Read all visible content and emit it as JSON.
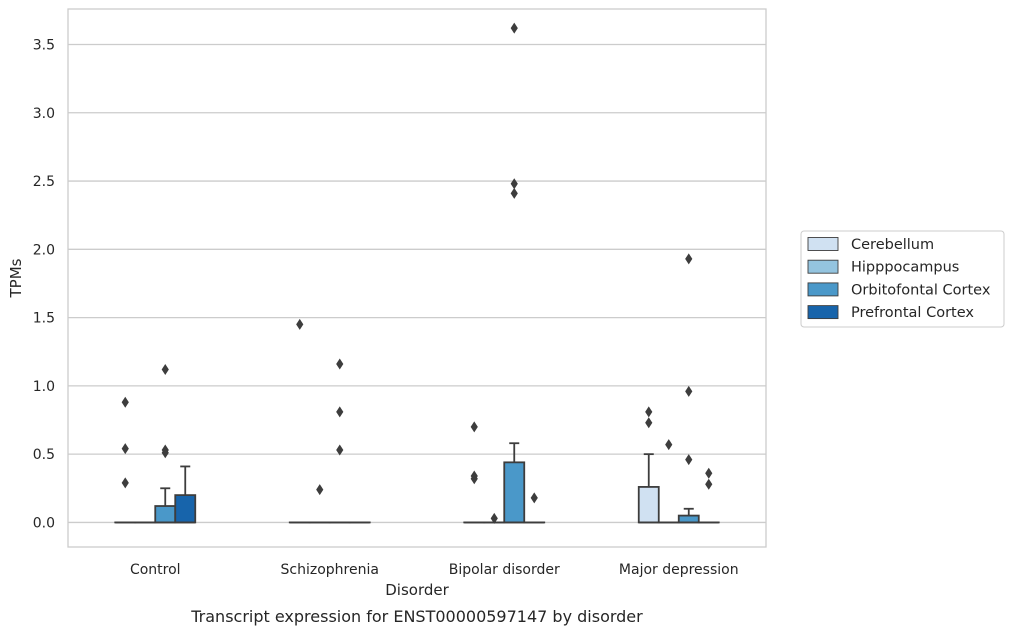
{
  "caption": "Transcript expression for ENST00000597147 by disorder",
  "chart_data": {
    "type": "box",
    "xlabel": "Disorder",
    "ylabel": "TPMs",
    "ylim": [
      -0.18,
      3.76
    ],
    "yticks": [
      0.0,
      0.5,
      1.0,
      1.5,
      2.0,
      2.5,
      3.0,
      3.5
    ],
    "ytick_labels": [
      "0.0",
      "0.5",
      "1.0",
      "1.5",
      "2.0",
      "2.5",
      "3.0",
      "3.5"
    ],
    "grid": "horizontal",
    "legend_position": "right",
    "categories": [
      "Control",
      "Schizophrenia",
      "Bipolar disorder",
      "Major depression"
    ],
    "series": [
      {
        "name": "Cerebellum",
        "color": "#d0e1f2",
        "boxes": [
          {
            "q1": 0,
            "median": 0,
            "q3": 0,
            "whisker_low": 0,
            "whisker_high": 0,
            "outliers": [
              0.88,
              0.54,
              0.29
            ]
          },
          {
            "q1": 0,
            "median": 0,
            "q3": 0,
            "whisker_low": 0,
            "whisker_high": 0,
            "outliers": [
              1.45
            ]
          },
          {
            "q1": 0,
            "median": 0,
            "q3": 0,
            "whisker_low": 0,
            "whisker_high": 0,
            "outliers": [
              0.7,
              0.34,
              0.32
            ]
          },
          {
            "q1": 0,
            "median": 0,
            "q3": 0.26,
            "whisker_low": 0,
            "whisker_high": 0.5,
            "outliers": [
              0.81,
              0.73
            ]
          }
        ]
      },
      {
        "name": "Hipppocampus",
        "color": "#94c4df",
        "boxes": [
          {
            "q1": 0,
            "median": 0,
            "q3": 0,
            "whisker_low": 0,
            "whisker_high": 0,
            "outliers": []
          },
          {
            "q1": 0,
            "median": 0,
            "q3": 0,
            "whisker_low": 0,
            "whisker_high": 0,
            "outliers": [
              0.24
            ]
          },
          {
            "q1": 0,
            "median": 0,
            "q3": 0,
            "whisker_low": 0,
            "whisker_high": 0,
            "outliers": [
              0.03
            ]
          },
          {
            "q1": 0,
            "median": 0,
            "q3": 0,
            "whisker_low": 0,
            "whisker_high": 0,
            "outliers": [
              0.57
            ]
          }
        ]
      },
      {
        "name": "Orbitofontal Cortex",
        "color": "#4a98c9",
        "boxes": [
          {
            "q1": 0,
            "median": 0,
            "q3": 0.12,
            "whisker_low": 0,
            "whisker_high": 0.25,
            "outliers": [
              1.12,
              0.53,
              0.51
            ]
          },
          {
            "q1": 0,
            "median": 0,
            "q3": 0,
            "whisker_low": 0,
            "whisker_high": 0,
            "outliers": [
              1.16,
              0.81,
              0.53
            ]
          },
          {
            "q1": 0,
            "median": 0,
            "q3": 0.44,
            "whisker_low": 0,
            "whisker_high": 0.58,
            "outliers": [
              3.62,
              2.48,
              2.41
            ]
          },
          {
            "q1": 0,
            "median": 0,
            "q3": 0.05,
            "whisker_low": 0,
            "whisker_high": 0.1,
            "outliers": [
              1.93,
              0.96,
              0.46
            ]
          }
        ]
      },
      {
        "name": "Prefrontal Cortex",
        "color": "#1764ab",
        "boxes": [
          {
            "q1": 0,
            "median": 0,
            "q3": 0.2,
            "whisker_low": 0,
            "whisker_high": 0.41,
            "outliers": []
          },
          {
            "q1": 0,
            "median": 0,
            "q3": 0,
            "whisker_low": 0,
            "whisker_high": 0,
            "outliers": []
          },
          {
            "q1": 0,
            "median": 0,
            "q3": 0,
            "whisker_low": 0,
            "whisker_high": 0,
            "outliers": [
              0.18
            ]
          },
          {
            "q1": 0,
            "median": 0,
            "q3": 0,
            "whisker_low": 0,
            "whisker_high": 0,
            "outliers": [
              0.36,
              0.28
            ]
          }
        ]
      }
    ]
  }
}
